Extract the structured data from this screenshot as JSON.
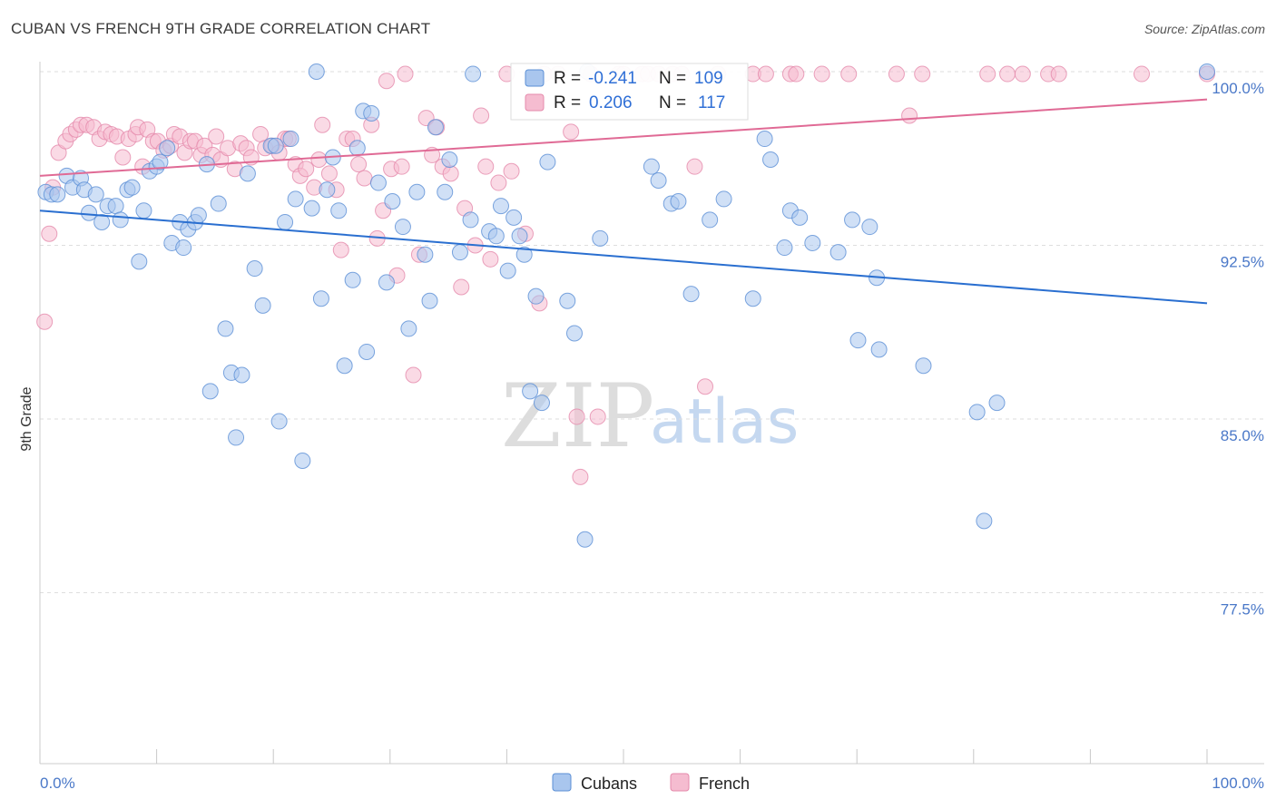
{
  "title": "CUBAN VS FRENCH 9TH GRADE CORRELATION CHART",
  "source": "Source: ZipAtlas.com",
  "watermark": {
    "zip": "ZIP",
    "atlas": "atlas"
  },
  "chart_data": {
    "type": "scatter",
    "ylabel": "9th Grade",
    "xlim": [
      0,
      100
    ],
    "ylim": [
      70.0,
      100.5
    ],
    "x_tick_labels": {
      "left": "0.0%",
      "right": "100.0%"
    },
    "y_ticks": [
      {
        "value": 100.0,
        "label": "100.0%"
      },
      {
        "value": 92.5,
        "label": "92.5%"
      },
      {
        "value": 85.0,
        "label": "85.0%"
      },
      {
        "value": 77.5,
        "label": "77.5%"
      }
    ],
    "grid": true,
    "legend_position": "bottom-center",
    "stats": [
      {
        "r_label": "R =",
        "r": "-0.241",
        "n_label": "N =",
        "n": "109"
      },
      {
        "r_label": "R =",
        "r": "0.206",
        "n_label": "N =",
        "n": "117"
      }
    ],
    "series": [
      {
        "name": "Cubans",
        "color": "#5b8fd6",
        "fill": "#a9c6ee",
        "trend": {
          "x": [
            0,
            100
          ],
          "y": [
            94.0,
            90.0
          ],
          "color": "#2a6fd0"
        },
        "points": [
          [
            0.5,
            94.8
          ],
          [
            1,
            94.7
          ],
          [
            1.5,
            94.7
          ],
          [
            2.3,
            95.5
          ],
          [
            2.8,
            95.0
          ],
          [
            3.5,
            95.4
          ],
          [
            3.8,
            94.9
          ],
          [
            4.2,
            93.9
          ],
          [
            4.8,
            94.7
          ],
          [
            5.3,
            93.5
          ],
          [
            5.8,
            94.2
          ],
          [
            6.5,
            94.2
          ],
          [
            6.9,
            93.6
          ],
          [
            7.5,
            94.9
          ],
          [
            7.9,
            95.0
          ],
          [
            8.5,
            91.8
          ],
          [
            8.9,
            94.0
          ],
          [
            9.4,
            95.7
          ],
          [
            10,
            95.9
          ],
          [
            10.3,
            96.1
          ],
          [
            10.9,
            96.7
          ],
          [
            11.3,
            92.6
          ],
          [
            12,
            93.5
          ],
          [
            12.3,
            92.4
          ],
          [
            12.7,
            93.2
          ],
          [
            13.3,
            93.5
          ],
          [
            13.6,
            93.8
          ],
          [
            14.3,
            96.0
          ],
          [
            14.6,
            86.2
          ],
          [
            15.3,
            94.3
          ],
          [
            15.9,
            88.9
          ],
          [
            16.4,
            87.0
          ],
          [
            16.8,
            84.2
          ],
          [
            17.3,
            86.9
          ],
          [
            17.8,
            95.6
          ],
          [
            18.4,
            91.5
          ],
          [
            19.1,
            89.9
          ],
          [
            19.8,
            96.8
          ],
          [
            20.2,
            96.8
          ],
          [
            20.5,
            84.9
          ],
          [
            21,
            93.5
          ],
          [
            21.5,
            97.1
          ],
          [
            21.9,
            94.5
          ],
          [
            22.5,
            83.2
          ],
          [
            23.3,
            94.1
          ],
          [
            23.7,
            100.0
          ],
          [
            24.1,
            90.2
          ],
          [
            24.6,
            94.9
          ],
          [
            25.1,
            96.3
          ],
          [
            25.6,
            94.0
          ],
          [
            26.1,
            87.3
          ],
          [
            26.8,
            91.0
          ],
          [
            27.2,
            96.7
          ],
          [
            27.7,
            98.3
          ],
          [
            28.0,
            87.9
          ],
          [
            28.4,
            98.2
          ],
          [
            29.0,
            95.2
          ],
          [
            29.7,
            90.9
          ],
          [
            30.2,
            94.4
          ],
          [
            31.1,
            93.3
          ],
          [
            31.6,
            88.9
          ],
          [
            32.3,
            94.8
          ],
          [
            33.0,
            92.1
          ],
          [
            33.4,
            90.1
          ],
          [
            33.9,
            97.6
          ],
          [
            34.7,
            94.8
          ],
          [
            35.1,
            96.2
          ],
          [
            36.0,
            92.2
          ],
          [
            36.9,
            93.6
          ],
          [
            37.1,
            99.9
          ],
          [
            38.5,
            93.1
          ],
          [
            39.1,
            92.9
          ],
          [
            39.5,
            94.2
          ],
          [
            40.1,
            91.4
          ],
          [
            40.6,
            93.7
          ],
          [
            41.1,
            92.9
          ],
          [
            41.5,
            92.1
          ],
          [
            42.0,
            86.2
          ],
          [
            42.5,
            90.3
          ],
          [
            43.0,
            85.7
          ],
          [
            43.5,
            96.1
          ],
          [
            45.2,
            90.1
          ],
          [
            45.8,
            88.7
          ],
          [
            46.7,
            79.8
          ],
          [
            46.9,
            100.0
          ],
          [
            48.0,
            92.8
          ],
          [
            52.4,
            95.9
          ],
          [
            53.0,
            95.3
          ],
          [
            54.1,
            94.3
          ],
          [
            54.7,
            94.4
          ],
          [
            55.8,
            90.4
          ],
          [
            57.4,
            93.6
          ],
          [
            58.6,
            94.5
          ],
          [
            61.1,
            90.2
          ],
          [
            62.1,
            97.1
          ],
          [
            62.6,
            96.2
          ],
          [
            63.8,
            92.4
          ],
          [
            64.3,
            94.0
          ],
          [
            65.1,
            93.7
          ],
          [
            66.2,
            92.6
          ],
          [
            68.4,
            92.2
          ],
          [
            69.6,
            93.6
          ],
          [
            70.1,
            88.4
          ],
          [
            71.1,
            93.3
          ],
          [
            71.7,
            91.1
          ],
          [
            71.9,
            88.0
          ],
          [
            75.7,
            87.3
          ],
          [
            80.3,
            85.3
          ],
          [
            80.9,
            80.6
          ],
          [
            82.0,
            85.7
          ],
          [
            100,
            100.0
          ]
        ]
      },
      {
        "name": "French",
        "color": "#e58aab",
        "fill": "#f5bcd0",
        "trend": {
          "x": [
            0,
            100
          ],
          "y": [
            95.5,
            98.8
          ],
          "color": "#e06a95"
        },
        "points": [
          [
            0.4,
            89.2
          ],
          [
            0.8,
            93.0
          ],
          [
            1.1,
            95.0
          ],
          [
            1.6,
            96.5
          ],
          [
            2.2,
            97.0
          ],
          [
            2.6,
            97.3
          ],
          [
            3.1,
            97.5
          ],
          [
            3.5,
            97.7
          ],
          [
            4.0,
            97.7
          ],
          [
            4.6,
            97.6
          ],
          [
            5.1,
            97.1
          ],
          [
            5.6,
            97.4
          ],
          [
            6.1,
            97.3
          ],
          [
            6.6,
            97.2
          ],
          [
            7.1,
            96.3
          ],
          [
            7.6,
            97.1
          ],
          [
            8.2,
            97.3
          ],
          [
            8.4,
            97.6
          ],
          [
            8.8,
            95.9
          ],
          [
            9.2,
            97.5
          ],
          [
            9.7,
            97.0
          ],
          [
            10.1,
            97.0
          ],
          [
            10.6,
            96.6
          ],
          [
            11.2,
            96.8
          ],
          [
            11.5,
            97.3
          ],
          [
            12.0,
            97.2
          ],
          [
            12.4,
            96.5
          ],
          [
            12.9,
            97.0
          ],
          [
            13.3,
            97.0
          ],
          [
            13.8,
            96.4
          ],
          [
            14.1,
            96.8
          ],
          [
            14.8,
            96.4
          ],
          [
            15.1,
            97.2
          ],
          [
            15.5,
            96.2
          ],
          [
            16.1,
            96.7
          ],
          [
            16.7,
            95.8
          ],
          [
            17.2,
            96.9
          ],
          [
            17.7,
            96.7
          ],
          [
            18.1,
            96.3
          ],
          [
            18.9,
            97.3
          ],
          [
            19.3,
            96.7
          ],
          [
            19.9,
            96.8
          ],
          [
            20.5,
            96.5
          ],
          [
            21.0,
            97.1
          ],
          [
            21.3,
            97.1
          ],
          [
            21.9,
            96.0
          ],
          [
            22.3,
            95.5
          ],
          [
            22.8,
            95.8
          ],
          [
            23.5,
            95.0
          ],
          [
            23.9,
            96.2
          ],
          [
            24.2,
            97.7
          ],
          [
            24.8,
            95.6
          ],
          [
            25.4,
            94.9
          ],
          [
            25.8,
            92.3
          ],
          [
            26.3,
            97.1
          ],
          [
            26.8,
            97.1
          ],
          [
            27.3,
            96.0
          ],
          [
            27.8,
            95.4
          ],
          [
            28.4,
            97.7
          ],
          [
            28.9,
            92.8
          ],
          [
            29.4,
            94.0
          ],
          [
            29.7,
            99.6
          ],
          [
            30.1,
            95.8
          ],
          [
            30.6,
            91.2
          ],
          [
            31.0,
            95.9
          ],
          [
            31.3,
            99.9
          ],
          [
            32.0,
            86.9
          ],
          [
            32.5,
            92.1
          ],
          [
            33.1,
            98.0
          ],
          [
            33.6,
            96.4
          ],
          [
            34.0,
            97.6
          ],
          [
            34.5,
            95.9
          ],
          [
            35.2,
            95.6
          ],
          [
            36.1,
            90.7
          ],
          [
            36.4,
            94.1
          ],
          [
            37.3,
            92.5
          ],
          [
            37.8,
            98.1
          ],
          [
            38.2,
            95.9
          ],
          [
            38.6,
            91.9
          ],
          [
            39.3,
            95.2
          ],
          [
            40.0,
            99.9
          ],
          [
            40.4,
            95.7
          ],
          [
            41.6,
            93.0
          ],
          [
            42.8,
            90.0
          ],
          [
            43.2,
            99.9
          ],
          [
            44.4,
            99.9
          ],
          [
            45.5,
            97.4
          ],
          [
            46.0,
            85.1
          ],
          [
            46.3,
            82.5
          ],
          [
            47.2,
            99.9
          ],
          [
            47.8,
            85.1
          ],
          [
            49.6,
            99.9
          ],
          [
            50.0,
            99.9
          ],
          [
            51.6,
            99.9
          ],
          [
            52.1,
            99.9
          ],
          [
            53.0,
            99.9
          ],
          [
            54.2,
            99.9
          ],
          [
            55.0,
            99.9
          ],
          [
            56.1,
            95.9
          ],
          [
            57.0,
            86.4
          ],
          [
            58.1,
            99.9
          ],
          [
            61.1,
            99.9
          ],
          [
            62.2,
            99.9
          ],
          [
            64.3,
            99.9
          ],
          [
            64.8,
            99.9
          ],
          [
            67.0,
            99.9
          ],
          [
            69.3,
            99.9
          ],
          [
            73.4,
            99.9
          ],
          [
            74.5,
            98.1
          ],
          [
            75.6,
            99.9
          ],
          [
            81.2,
            99.9
          ],
          [
            82.9,
            99.9
          ],
          [
            84.2,
            99.9
          ],
          [
            86.4,
            99.9
          ],
          [
            87.3,
            99.9
          ],
          [
            94.4,
            99.9
          ],
          [
            100,
            99.9
          ]
        ]
      }
    ]
  }
}
